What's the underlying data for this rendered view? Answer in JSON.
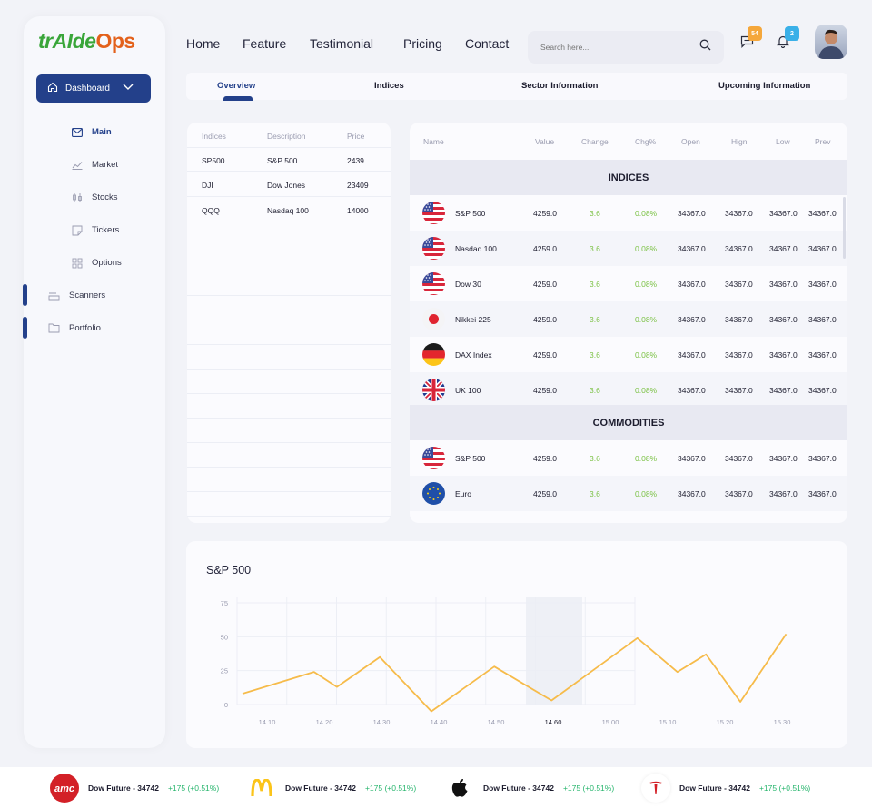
{
  "brand": {
    "part1": "trAIde",
    "part2": "Ops"
  },
  "nav": [
    "Home",
    "Feature",
    "Testimonial",
    "Pricing",
    "Contact"
  ],
  "search": {
    "placeholder": "Search here..."
  },
  "badges": {
    "messages": "54",
    "notifications": "2"
  },
  "sidebar": {
    "dashboard_label": "Dashboard",
    "items": [
      "Main",
      "Market",
      "Stocks",
      "Tickers",
      "Options"
    ],
    "sections": [
      "Scanners",
      "Portfolio"
    ]
  },
  "tabs": [
    "Overview",
    "Indices",
    "Sector Information",
    "Upcoming Information"
  ],
  "left_table": {
    "headers": [
      "Indices",
      "Description",
      "Price"
    ],
    "rows": [
      [
        "SP500",
        "S&P 500",
        "2439"
      ],
      [
        "DJI",
        "Dow Jones",
        "23409"
      ],
      [
        "QQQ",
        "Nasdaq 100",
        "14000"
      ]
    ]
  },
  "right_table": {
    "headers": [
      "Name",
      "Value",
      "Change",
      "Chg%",
      "Open",
      "Hign",
      "Low",
      "Prev"
    ],
    "sections": [
      {
        "title": "INDICES",
        "rows": [
          {
            "flag": "us",
            "name": "S&P 500",
            "value": "4259.0",
            "change": "3.6",
            "pct": "0.08%",
            "open": "34367.0",
            "high": "34367.0",
            "low": "34367.0",
            "prev": "34367.0"
          },
          {
            "flag": "us",
            "name": "Nasdaq 100",
            "value": "4259.0",
            "change": "3.6",
            "pct": "0.08%",
            "open": "34367.0",
            "high": "34367.0",
            "low": "34367.0",
            "prev": "34367.0"
          },
          {
            "flag": "us",
            "name": "Dow 30",
            "value": "4259.0",
            "change": "3.6",
            "pct": "0.08%",
            "open": "34367.0",
            "high": "34367.0",
            "low": "34367.0",
            "prev": "34367.0"
          },
          {
            "flag": "jp",
            "name": "Nikkei 225",
            "value": "4259.0",
            "change": "3.6",
            "pct": "0.08%",
            "open": "34367.0",
            "high": "34367.0",
            "low": "34367.0",
            "prev": "34367.0"
          },
          {
            "flag": "de",
            "name": "DAX Index",
            "value": "4259.0",
            "change": "3.6",
            "pct": "0.08%",
            "open": "34367.0",
            "high": "34367.0",
            "low": "34367.0",
            "prev": "34367.0"
          },
          {
            "flag": "uk",
            "name": "UK 100",
            "value": "4259.0",
            "change": "3.6",
            "pct": "0.08%",
            "open": "34367.0",
            "high": "34367.0",
            "low": "34367.0",
            "prev": "34367.0"
          }
        ]
      },
      {
        "title": "COMMODITIES",
        "rows": [
          {
            "flag": "us",
            "name": "S&P 500",
            "value": "4259.0",
            "change": "3.6",
            "pct": "0.08%",
            "open": "34367.0",
            "high": "34367.0",
            "low": "34367.0",
            "prev": "34367.0"
          },
          {
            "flag": "eu",
            "name": "Euro",
            "value": "4259.0",
            "change": "3.6",
            "pct": "0.08%",
            "open": "34367.0",
            "high": "34367.0",
            "low": "34367.0",
            "prev": "34367.0"
          }
        ]
      }
    ]
  },
  "chart_data": {
    "type": "line",
    "title": "S&P 500",
    "x": [
      "14.10",
      "14.20",
      "14.30",
      "14.40",
      "14.50",
      "14.60",
      "15.00",
      "15.10",
      "15.20",
      "15.30"
    ],
    "ylim": [
      0,
      75
    ],
    "yticks": [
      0,
      25,
      50,
      75
    ],
    "highlight_x": "14.60",
    "series": [
      {
        "points": [
          [
            0,
            8
          ],
          [
            1.25,
            24
          ],
          [
            1.65,
            13
          ],
          [
            2.4,
            35
          ],
          [
            3.3,
            -5
          ],
          [
            4.4,
            28
          ],
          [
            5.4,
            3
          ],
          [
            6.9,
            49
          ],
          [
            7.6,
            24
          ],
          [
            8.1,
            37
          ],
          [
            8.7,
            2
          ],
          [
            9.5,
            52
          ]
        ]
      }
    ],
    "color": "#f6bb4a"
  },
  "ticker": [
    {
      "brand": "amc",
      "text": "Dow Future - 34742",
      "change": "+175 (+0.51%)"
    },
    {
      "brand": "mcdonalds",
      "text": "Dow Future - 34742",
      "change": "+175 (+0.51%)"
    },
    {
      "brand": "apple",
      "text": "Dow Future - 34742",
      "change": "+175 (+0.51%)"
    },
    {
      "brand": "tesla",
      "text": "Dow Future - 34742",
      "change": "+175 (+0.51%)"
    }
  ]
}
